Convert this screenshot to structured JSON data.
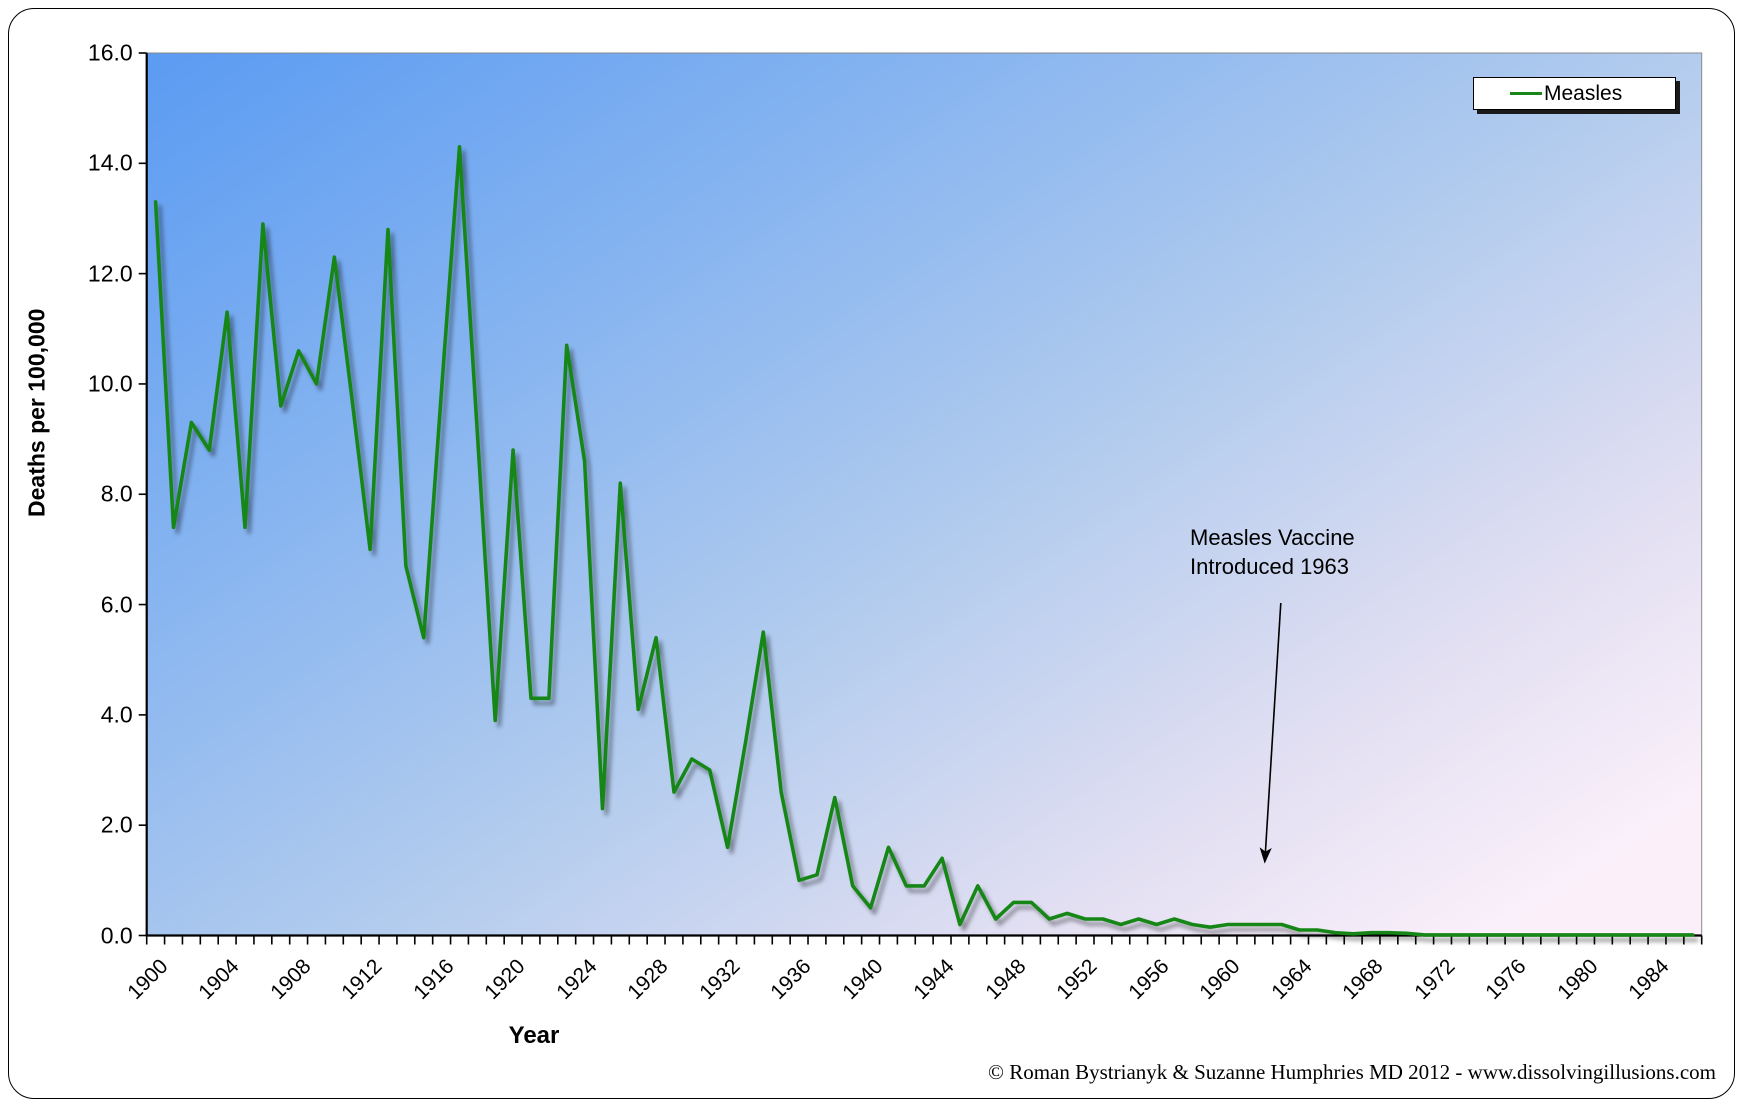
{
  "chart_data": {
    "type": "line",
    "xlabel": "Year",
    "ylabel": "Deaths per 100,000",
    "ylim": [
      0,
      16
    ],
    "ytick_step": 2,
    "y_tick_labels": [
      "16.0",
      "14.0",
      "12.0",
      "10.0",
      "8.0",
      "6.0",
      "4.0",
      "2.0",
      "0.0"
    ],
    "x_tick_labels": [
      "1900",
      "1904",
      "1908",
      "1912",
      "1916",
      "1920",
      "1924",
      "1928",
      "1932",
      "1936",
      "1940",
      "1944",
      "1948",
      "1952",
      "1956",
      "1960",
      "1964",
      "1968",
      "1972",
      "1976",
      "1980",
      "1984"
    ],
    "x_start_year": 1900,
    "x_end_year": 1986,
    "grid": false,
    "legend_position": "top-right",
    "series": [
      {
        "name": "Measles",
        "color": "#178717",
        "x": [
          1900,
          1901,
          1902,
          1903,
          1904,
          1905,
          1906,
          1907,
          1908,
          1909,
          1910,
          1911,
          1912,
          1913,
          1914,
          1915,
          1916,
          1917,
          1918,
          1919,
          1920,
          1921,
          1922,
          1923,
          1924,
          1925,
          1926,
          1927,
          1928,
          1929,
          1930,
          1931,
          1932,
          1933,
          1934,
          1935,
          1936,
          1937,
          1938,
          1939,
          1940,
          1941,
          1942,
          1943,
          1944,
          1945,
          1946,
          1947,
          1948,
          1949,
          1950,
          1951,
          1952,
          1953,
          1954,
          1955,
          1956,
          1957,
          1958,
          1959,
          1960,
          1961,
          1962,
          1963,
          1964,
          1965,
          1966,
          1967,
          1968,
          1969,
          1970,
          1971,
          1972,
          1973,
          1974,
          1975,
          1976,
          1977,
          1978,
          1979,
          1980,
          1981,
          1982,
          1983,
          1984,
          1985,
          1986
        ],
        "values": [
          13.3,
          7.4,
          9.3,
          8.8,
          11.3,
          7.4,
          12.9,
          9.6,
          10.6,
          10.0,
          12.3,
          9.7,
          7.0,
          12.8,
          6.7,
          5.4,
          9.9,
          14.3,
          9.1,
          3.9,
          8.8,
          4.3,
          4.3,
          10.7,
          8.6,
          2.3,
          8.2,
          4.1,
          5.4,
          2.6,
          3.2,
          3.0,
          1.6,
          3.5,
          5.5,
          2.6,
          1.0,
          1.1,
          2.5,
          0.9,
          0.5,
          1.6,
          0.9,
          0.9,
          1.4,
          0.2,
          0.9,
          0.3,
          0.6,
          0.6,
          0.3,
          0.4,
          0.3,
          0.3,
          0.2,
          0.3,
          0.2,
          0.3,
          0.2,
          0.15,
          0.2,
          0.2,
          0.2,
          0.2,
          0.1,
          0.1,
          0.05,
          0.03,
          0.05,
          0.05,
          0.04,
          0.01,
          0.01,
          0.01,
          0.01,
          0.01,
          0.01,
          0.01,
          0.01,
          0.01,
          0.01,
          0.01,
          0.01,
          0.01,
          0.01,
          0.01,
          0.01
        ]
      }
    ],
    "annotation": {
      "line1": "Measles Vaccine",
      "line2": "Introduced 1963",
      "arrow_target_year": 1962,
      "arrow_target_value": 1.1
    },
    "footer": "© Roman Bystrianyk & Suzanne Humphries MD 2012 - www.dissolvingillusions.com",
    "colors": {
      "line": "#178717",
      "plot_gradient": [
        "#5B9BF2",
        "#86B4F0",
        "#B3CCEE",
        "#E2DFF2",
        "#FBF0FA"
      ],
      "axis": "#000000",
      "plot_border": "#8a8a8a",
      "legend_background": "#ffffff",
      "legend_border": "#000000"
    }
  }
}
